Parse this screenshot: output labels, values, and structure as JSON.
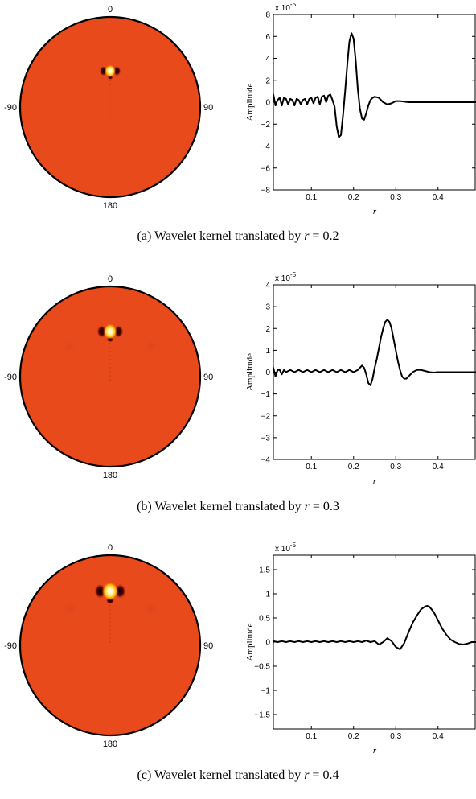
{
  "panels": [
    {
      "caption": {
        "prefix": "(a) Wavelet kernel translated by ",
        "var": "r",
        "rest": " = 0.2"
      },
      "disk": {
        "labels": {
          "top": "0",
          "left": "-90",
          "right": "90",
          "bottom": "180"
        },
        "background_color": "#e84a1c",
        "blob_r": 0.2
      },
      "chart_data": {
        "type": "line",
        "xlabel": "r",
        "ylabel": "Amplitude",
        "scale_label": "x 10",
        "scale_exp": "-5",
        "xlim": [
          0.01,
          0.49
        ],
        "ylim": [
          -8,
          8
        ],
        "x_ticks": [
          0.1,
          0.2,
          0.3,
          0.4
        ],
        "x_tick_labels": [
          "0.1",
          "0.2",
          "0.3",
          "0.4"
        ],
        "y_ticks": [
          -8,
          -6,
          -4,
          -2,
          0,
          2,
          4,
          6,
          8
        ],
        "y_tick_labels": [
          "−8",
          "−6",
          "−4",
          "−2",
          "0",
          "2",
          "4",
          "6",
          "8"
        ],
        "series": [
          {
            "color": "#000000",
            "x": [
              0.01,
              0.015,
              0.02,
              0.025,
              0.03,
              0.035,
              0.04,
              0.045,
              0.05,
              0.055,
              0.06,
              0.065,
              0.07,
              0.075,
              0.08,
              0.085,
              0.09,
              0.095,
              0.1,
              0.105,
              0.11,
              0.115,
              0.12,
              0.125,
              0.13,
              0.135,
              0.14,
              0.145,
              0.15,
              0.155,
              0.16,
              0.165,
              0.17,
              0.175,
              0.18,
              0.185,
              0.19,
              0.195,
              0.2,
              0.205,
              0.21,
              0.215,
              0.22,
              0.225,
              0.23,
              0.235,
              0.24,
              0.245,
              0.25,
              0.26,
              0.27,
              0.28,
              0.29,
              0.3,
              0.31,
              0.32,
              0.33,
              0.34,
              0.36,
              0.38,
              0.4,
              0.43,
              0.46,
              0.49
            ],
            "y": [
              0.7,
              -0.3,
              0.2,
              0.4,
              -0.3,
              0.4,
              0.3,
              -0.2,
              0.3,
              0.2,
              -0.3,
              0.3,
              0.2,
              -0.2,
              0.2,
              0.3,
              -0.2,
              0.3,
              0.4,
              -0.1,
              0.4,
              0.5,
              -0.2,
              0.5,
              0.6,
              0,
              0.6,
              0.7,
              0.2,
              -0.4,
              -2.2,
              -3.2,
              -3,
              -1.2,
              1,
              3.4,
              5.5,
              6.3,
              5.8,
              3.8,
              1.2,
              -0.6,
              -1.5,
              -1.6,
              -1,
              -0.3,
              0.2,
              0.4,
              0.5,
              0.4,
              0,
              -0.2,
              -0.1,
              0.1,
              0.1,
              0.05,
              0,
              0,
              0,
              0,
              0,
              0,
              0,
              0
            ]
          }
        ]
      }
    },
    {
      "caption": {
        "prefix": "(b) Wavelet kernel translated by ",
        "var": "r",
        "rest": " = 0.3"
      },
      "disk": {
        "labels": {
          "top": "0",
          "left": "-90",
          "right": "90",
          "bottom": "180"
        },
        "background_color": "#e84a1c",
        "blob_r": 0.3
      },
      "chart_data": {
        "type": "line",
        "xlabel": "r",
        "ylabel": "Amplitude",
        "scale_label": "x 10",
        "scale_exp": "-5",
        "xlim": [
          0.01,
          0.49
        ],
        "ylim": [
          -4,
          4
        ],
        "x_ticks": [
          0.1,
          0.2,
          0.3,
          0.4
        ],
        "x_tick_labels": [
          "0.1",
          "0.2",
          "0.3",
          "0.4"
        ],
        "y_ticks": [
          -4,
          -3,
          -2,
          -1,
          0,
          1,
          2,
          3,
          4
        ],
        "y_tick_labels": [
          "−4",
          "−3",
          "−2",
          "−1",
          "0",
          "1",
          "2",
          "3",
          "4"
        ],
        "series": [
          {
            "color": "#000000",
            "x": [
              0.01,
              0.015,
              0.02,
              0.025,
              0.03,
              0.035,
              0.04,
              0.05,
              0.06,
              0.07,
              0.08,
              0.09,
              0.1,
              0.11,
              0.12,
              0.13,
              0.14,
              0.15,
              0.16,
              0.17,
              0.18,
              0.19,
              0.2,
              0.21,
              0.215,
              0.22,
              0.225,
              0.23,
              0.235,
              0.24,
              0.245,
              0.25,
              0.255,
              0.26,
              0.265,
              0.27,
              0.275,
              0.28,
              0.285,
              0.29,
              0.295,
              0.3,
              0.305,
              0.31,
              0.315,
              0.32,
              0.325,
              0.33,
              0.34,
              0.35,
              0.36,
              0.37,
              0.38,
              0.39,
              0.4,
              0.42,
              0.45,
              0.49
            ],
            "y": [
              0.2,
              -0.2,
              0.1,
              0.1,
              -0.1,
              0.1,
              0,
              0.1,
              0,
              0.1,
              0,
              0.1,
              0,
              0.1,
              0,
              0.1,
              0,
              0.1,
              0,
              0.1,
              0,
              0.1,
              0,
              0.1,
              0.2,
              0.3,
              0.2,
              -0.1,
              -0.5,
              -0.6,
              -0.3,
              0.2,
              0.6,
              1.1,
              1.6,
              2,
              2.3,
              2.4,
              2.3,
              2,
              1.5,
              1,
              0.5,
              0.1,
              -0.2,
              -0.3,
              -0.3,
              -0.2,
              0,
              0.1,
              0.1,
              0.05,
              0,
              -0.02,
              0,
              0,
              0,
              0
            ]
          }
        ]
      }
    },
    {
      "caption": {
        "prefix": "(c) Wavelet kernel translated by ",
        "var": "r",
        "rest": " = 0.4"
      },
      "disk": {
        "labels": {
          "top": "0",
          "left": "-90",
          "right": "90",
          "bottom": "180"
        },
        "background_color": "#e84a1c",
        "blob_r": 0.4
      },
      "chart_data": {
        "type": "line",
        "xlabel": "r",
        "ylabel": "Amplitude",
        "scale_label": "x 10",
        "scale_exp": "-5",
        "xlim": [
          0.01,
          0.49
        ],
        "ylim": [
          -1.8,
          1.8
        ],
        "x_ticks": [
          0.1,
          0.2,
          0.3,
          0.4
        ],
        "x_tick_labels": [
          "0.1",
          "0.2",
          "0.3",
          "0.4"
        ],
        "y_ticks": [
          -1.5,
          -1,
          -0.5,
          0,
          0.5,
          1,
          1.5
        ],
        "y_tick_labels": [
          "−1.5",
          "−1",
          "−0.5",
          "0",
          "0.5",
          "1",
          "1.5"
        ],
        "series": [
          {
            "color": "#000000",
            "x": [
              0.01,
              0.02,
              0.03,
              0.04,
              0.05,
              0.06,
              0.07,
              0.08,
              0.09,
              0.1,
              0.11,
              0.12,
              0.13,
              0.14,
              0.15,
              0.16,
              0.17,
              0.18,
              0.19,
              0.2,
              0.21,
              0.22,
              0.23,
              0.24,
              0.25,
              0.26,
              0.27,
              0.28,
              0.29,
              0.3,
              0.31,
              0.32,
              0.33,
              0.34,
              0.35,
              0.36,
              0.37,
              0.375,
              0.38,
              0.39,
              0.4,
              0.41,
              0.42,
              0.43,
              0.44,
              0.45,
              0.46,
              0.47,
              0.48,
              0.49
            ],
            "y": [
              0.02,
              0,
              0.02,
              0,
              0.02,
              0,
              0.02,
              0,
              0.02,
              0,
              0.02,
              0,
              0.02,
              0,
              0.02,
              0,
              0.02,
              0,
              0.02,
              0,
              0.02,
              0,
              0.03,
              0,
              0.02,
              -0.05,
              0,
              0.08,
              0.02,
              -0.1,
              -0.15,
              -0.02,
              0.2,
              0.4,
              0.55,
              0.68,
              0.74,
              0.75,
              0.73,
              0.62,
              0.45,
              0.28,
              0.15,
              0.05,
              0,
              -0.04,
              -0.05,
              -0.03,
              0,
              0
            ]
          }
        ]
      }
    }
  ]
}
